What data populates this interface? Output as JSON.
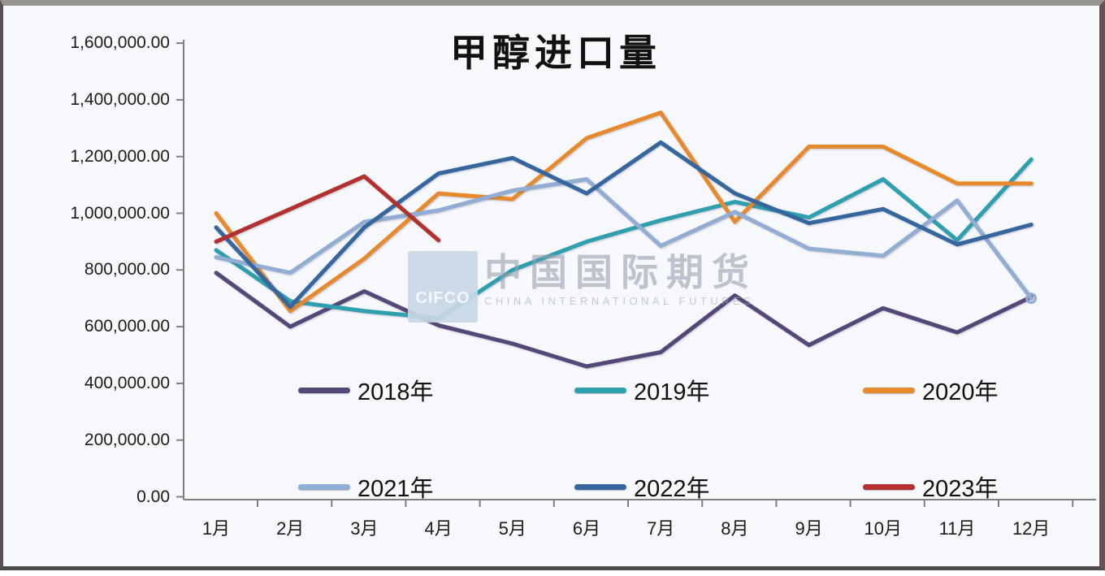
{
  "title": "甲醇进口量",
  "watermark": {
    "logo_text": "CIFCO",
    "cn": "中国国际期货",
    "en": "CHINA INTERNATIONAL FUTURES"
  },
  "chart_data": {
    "type": "line",
    "title": "甲醇进口量",
    "xlabel": "",
    "ylabel": "",
    "ylim": [
      0,
      1600000
    ],
    "grid": false,
    "legend_position": "inside-bottom, two rows of three",
    "categories": [
      "1月",
      "2月",
      "3月",
      "4月",
      "5月",
      "6月",
      "7月",
      "8月",
      "9月",
      "10月",
      "11月",
      "12月"
    ],
    "y_tick_labels": [
      "0.00",
      "200,000.00",
      "400,000.00",
      "600,000.00",
      "800,000.00",
      "1,000,000.00",
      "1,200,000.00",
      "1,400,000.00",
      "1,600,000.00"
    ],
    "y_tick_values": [
      0,
      200000,
      400000,
      600000,
      800000,
      1000000,
      1200000,
      1400000,
      1600000
    ],
    "series": [
      {
        "name": "2018年",
        "color": "#564779",
        "values": [
          790000,
          600000,
          725000,
          605000,
          540000,
          460000,
          510000,
          710000,
          535000,
          665000,
          580000,
          705000
        ]
      },
      {
        "name": "2019年",
        "color": "#2E9FAF",
        "values": [
          870000,
          690000,
          655000,
          630000,
          800000,
          900000,
          975000,
          1040000,
          985000,
          1120000,
          905000,
          1190000
        ]
      },
      {
        "name": "2020年",
        "color": "#E78A2D",
        "values": [
          1000000,
          655000,
          840000,
          1070000,
          1050000,
          1265000,
          1355000,
          970000,
          1235000,
          1235000,
          1105000,
          1105000
        ]
      },
      {
        "name": "2021年",
        "color": "#92ADD3",
        "end_marker": true,
        "values": [
          845000,
          790000,
          970000,
          1010000,
          1080000,
          1120000,
          885000,
          1005000,
          875000,
          850000,
          1045000,
          700000
        ]
      },
      {
        "name": "2022年",
        "color": "#35679E",
        "values": [
          950000,
          670000,
          950000,
          1140000,
          1195000,
          1070000,
          1250000,
          1070000,
          965000,
          1015000,
          890000,
          960000
        ]
      },
      {
        "name": "2023年",
        "color": "#B2302E",
        "values": [
          900000,
          1015000,
          1130000,
          905000,
          null,
          null,
          null,
          null,
          null,
          null,
          null,
          null
        ]
      }
    ]
  }
}
